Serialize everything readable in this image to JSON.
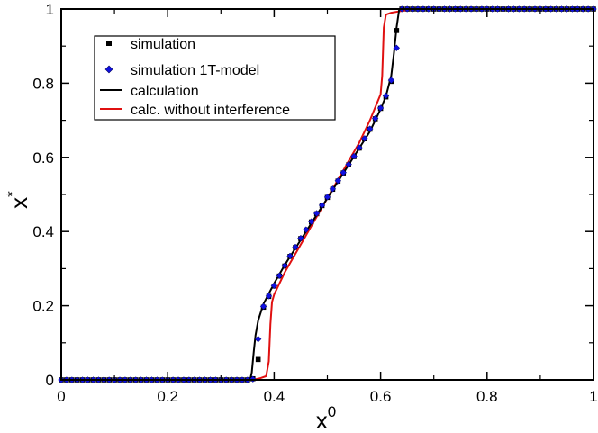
{
  "chart_data": {
    "type": "line",
    "title": "",
    "xlabel": {
      "base": "x",
      "sup": "0"
    },
    "ylabel": {
      "base": "x",
      "sup": "*"
    },
    "xlim": [
      0,
      1
    ],
    "ylim": [
      0,
      1
    ],
    "x_ticks": [
      0,
      0.2,
      0.4,
      0.6,
      0.8,
      1
    ],
    "x_tick_labels": [
      "0",
      "0.2",
      "0.4",
      "0.6",
      "0.8",
      "1"
    ],
    "y_ticks": [
      0,
      0.2,
      0.4,
      0.6,
      0.8,
      1
    ],
    "y_tick_labels": [
      "0",
      "0.2",
      "0.4",
      "0.6",
      "0.8",
      "1"
    ],
    "grid": false,
    "legend_position": "top-left",
    "series": [
      {
        "name": "simulation",
        "kind": "marker",
        "marker": "square",
        "color": "#000000",
        "x": [
          0.0,
          0.01,
          0.02,
          0.03,
          0.04,
          0.05,
          0.06,
          0.07,
          0.08,
          0.09,
          0.1,
          0.11,
          0.12,
          0.13,
          0.14,
          0.15,
          0.16,
          0.17,
          0.18,
          0.19,
          0.2,
          0.21,
          0.22,
          0.23,
          0.24,
          0.25,
          0.26,
          0.27,
          0.28,
          0.29,
          0.3,
          0.31,
          0.32,
          0.33,
          0.34,
          0.35,
          0.36,
          0.37,
          0.38,
          0.39,
          0.4,
          0.41,
          0.42,
          0.43,
          0.44,
          0.45,
          0.46,
          0.47,
          0.48,
          0.49,
          0.5,
          0.51,
          0.52,
          0.53,
          0.54,
          0.55,
          0.56,
          0.57,
          0.58,
          0.59,
          0.6,
          0.61,
          0.62,
          0.63,
          0.64,
          0.65,
          0.66,
          0.67,
          0.68,
          0.69,
          0.7,
          0.71,
          0.72,
          0.73,
          0.74,
          0.75,
          0.76,
          0.77,
          0.78,
          0.79,
          0.8,
          0.81,
          0.82,
          0.83,
          0.84,
          0.85,
          0.86,
          0.87,
          0.88,
          0.89,
          0.9,
          0.91,
          0.92,
          0.93,
          0.94,
          0.95,
          0.96,
          0.97,
          0.98,
          0.99,
          1.0
        ],
        "y": [
          0,
          0,
          0,
          0,
          0,
          0,
          0,
          0,
          0,
          0,
          0,
          0,
          0,
          0,
          0,
          0,
          0,
          0,
          0,
          0,
          0,
          0,
          0,
          0,
          0,
          0,
          0,
          0,
          0,
          0,
          0,
          0,
          0,
          0,
          0,
          0,
          0.003,
          0.055,
          0.196,
          0.225,
          0.253,
          0.28,
          0.307,
          0.333,
          0.357,
          0.381,
          0.404,
          0.426,
          0.448,
          0.47,
          0.492,
          0.514,
          0.536,
          0.558,
          0.58,
          0.602,
          0.625,
          0.65,
          0.676,
          0.704,
          0.732,
          0.763,
          0.805,
          0.942,
          1,
          1,
          1,
          1,
          1,
          1,
          1,
          1,
          1,
          1,
          1,
          1,
          1,
          1,
          1,
          1,
          1,
          1,
          1,
          1,
          1,
          1,
          1,
          1,
          1,
          1,
          1,
          1,
          1,
          1,
          1,
          1,
          1,
          1,
          1,
          1,
          1
        ]
      },
      {
        "name": "simulation 1T-model",
        "kind": "marker",
        "marker": "diamond",
        "color": "#1010e0",
        "x": [
          0.0,
          0.01,
          0.02,
          0.03,
          0.04,
          0.05,
          0.06,
          0.07,
          0.08,
          0.09,
          0.1,
          0.11,
          0.12,
          0.13,
          0.14,
          0.15,
          0.16,
          0.17,
          0.18,
          0.19,
          0.2,
          0.21,
          0.22,
          0.23,
          0.24,
          0.25,
          0.26,
          0.27,
          0.28,
          0.29,
          0.3,
          0.31,
          0.32,
          0.33,
          0.34,
          0.35,
          0.36,
          0.37,
          0.38,
          0.39,
          0.4,
          0.41,
          0.42,
          0.43,
          0.44,
          0.45,
          0.46,
          0.47,
          0.48,
          0.49,
          0.5,
          0.51,
          0.52,
          0.53,
          0.54,
          0.55,
          0.56,
          0.57,
          0.58,
          0.59,
          0.6,
          0.61,
          0.62,
          0.63,
          0.64,
          0.65,
          0.66,
          0.67,
          0.68,
          0.69,
          0.7,
          0.71,
          0.72,
          0.73,
          0.74,
          0.75,
          0.76,
          0.77,
          0.78,
          0.79,
          0.8,
          0.81,
          0.82,
          0.83,
          0.84,
          0.85,
          0.86,
          0.87,
          0.88,
          0.89,
          0.9,
          0.91,
          0.92,
          0.93,
          0.94,
          0.95,
          0.96,
          0.97,
          0.98,
          0.99,
          1.0
        ],
        "y": [
          0,
          0,
          0,
          0,
          0,
          0,
          0,
          0,
          0,
          0,
          0,
          0,
          0,
          0,
          0,
          0,
          0,
          0,
          0,
          0,
          0,
          0,
          0,
          0,
          0,
          0,
          0,
          0,
          0,
          0,
          0,
          0,
          0,
          0,
          0,
          0,
          0.002,
          0.11,
          0.198,
          0.226,
          0.254,
          0.281,
          0.308,
          0.334,
          0.358,
          0.382,
          0.405,
          0.427,
          0.449,
          0.471,
          0.493,
          0.515,
          0.537,
          0.559,
          0.581,
          0.603,
          0.626,
          0.651,
          0.677,
          0.705,
          0.733,
          0.766,
          0.808,
          0.895,
          1,
          1,
          1,
          1,
          1,
          1,
          1,
          1,
          1,
          1,
          1,
          1,
          1,
          1,
          1,
          1,
          1,
          1,
          1,
          1,
          1,
          1,
          1,
          1,
          1,
          1,
          1,
          1,
          1,
          1,
          1,
          1,
          1,
          1,
          1,
          1,
          1
        ]
      },
      {
        "name": "calculation",
        "kind": "line",
        "color": "#000000",
        "x": [
          0,
          0.355,
          0.358,
          0.362,
          0.365,
          0.37,
          0.38,
          0.4,
          0.42,
          0.44,
          0.46,
          0.48,
          0.5,
          0.52,
          0.54,
          0.56,
          0.58,
          0.6,
          0.61,
          0.62,
          0.625,
          0.63,
          0.635,
          0.64,
          0.65,
          1
        ],
        "y": [
          0,
          0,
          0.02,
          0.08,
          0.12,
          0.16,
          0.205,
          0.26,
          0.31,
          0.355,
          0.4,
          0.445,
          0.49,
          0.535,
          0.58,
          0.625,
          0.67,
          0.73,
          0.765,
          0.82,
          0.88,
          0.95,
          1,
          1,
          1,
          1
        ]
      },
      {
        "name": "calc. without interference",
        "kind": "line",
        "color": "#e01010",
        "x": [
          0,
          0.36,
          0.375,
          0.385,
          0.39,
          0.393,
          0.396,
          0.4,
          0.42,
          0.44,
          0.46,
          0.48,
          0.5,
          0.52,
          0.54,
          0.56,
          0.58,
          0.6,
          0.603,
          0.606,
          0.61,
          0.62,
          0.64,
          0.66,
          1
        ],
        "y": [
          0,
          0,
          0.005,
          0.01,
          0.05,
          0.15,
          0.21,
          0.23,
          0.29,
          0.34,
          0.39,
          0.44,
          0.49,
          0.54,
          0.59,
          0.64,
          0.7,
          0.77,
          0.82,
          0.95,
          0.985,
          0.99,
          0.995,
          1,
          1
        ]
      }
    ]
  }
}
